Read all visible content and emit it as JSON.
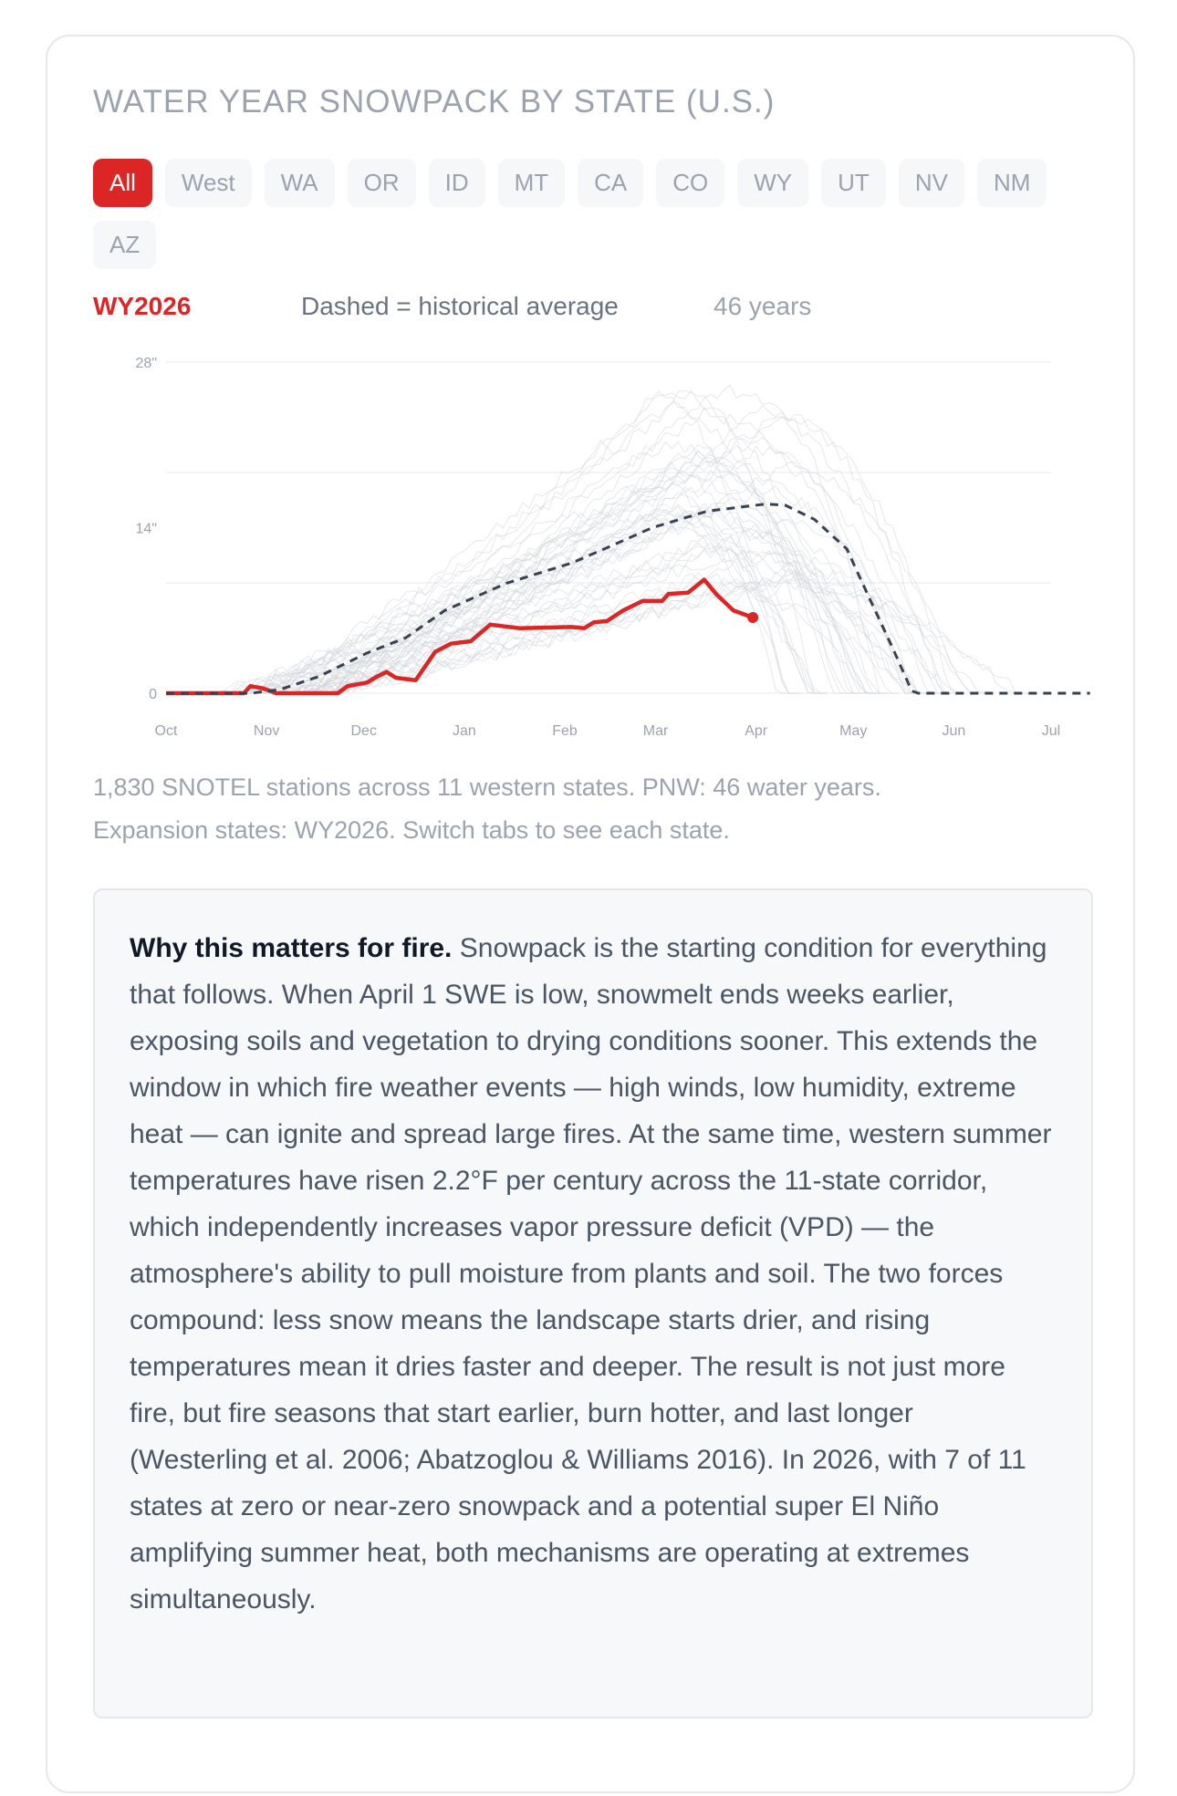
{
  "title": "WATER YEAR SNOWPACK BY STATE (U.S.)",
  "tabs": [
    {
      "label": "All",
      "active": true
    },
    {
      "label": "West"
    },
    {
      "label": "WA"
    },
    {
      "label": "OR"
    },
    {
      "label": "ID"
    },
    {
      "label": "MT"
    },
    {
      "label": "CA"
    },
    {
      "label": "CO"
    },
    {
      "label": "WY"
    },
    {
      "label": "UT"
    },
    {
      "label": "NV"
    },
    {
      "label": "NM"
    },
    {
      "label": "AZ"
    }
  ],
  "legend": {
    "current": "WY2026",
    "dashed": "Dashed = historical average",
    "years": "46 years"
  },
  "colors": {
    "current": "#dc2626",
    "average": "#374151",
    "historical": "#d1d5db",
    "grid": "#f0f1f3"
  },
  "chart_data": {
    "type": "line",
    "xlabel": "",
    "ylabel": "",
    "x_unit": "days since Oct 1",
    "x_ticks": [
      "Oct",
      "Nov",
      "Dec",
      "Jan",
      "Feb",
      "Mar",
      "Apr",
      "May",
      "Jun",
      "Jul"
    ],
    "y_ticks": [
      "0",
      "14\"",
      "28\""
    ],
    "y_tick_values": [
      0,
      14,
      28
    ],
    "ylim": [
      0,
      28
    ],
    "grid": true,
    "series": [
      {
        "name": "WY2026",
        "style": "solid",
        "color": "#dc2626",
        "x": [
          0,
          24,
          26,
          30,
          34,
          53,
          56,
          62,
          65,
          68,
          71,
          77,
          83,
          88,
          94,
          100,
          109,
          125,
          129,
          132,
          136,
          141,
          147,
          153,
          155,
          161,
          166,
          170,
          175,
          181
        ],
        "y": [
          0,
          0,
          0.6,
          0.4,
          0,
          0,
          0.6,
          0.9,
          1.4,
          1.8,
          1.3,
          1.1,
          3.5,
          4.2,
          4.4,
          5.8,
          5.5,
          5.6,
          5.5,
          6.0,
          6.1,
          7.0,
          7.8,
          7.8,
          8.4,
          8.5,
          9.6,
          8.3,
          7.0,
          6.4
        ]
      },
      {
        "name": "historical average",
        "style": "dashed",
        "color": "#374151",
        "x": [
          0,
          26,
          35,
          47,
          62,
          74,
          86,
          105,
          125,
          136,
          150,
          167,
          185,
          191,
          200,
          210,
          216,
          224,
          230,
          232,
          285
        ],
        "y": [
          0,
          0,
          0.3,
          1.4,
          3.4,
          4.7,
          7.0,
          9.3,
          11.0,
          12.3,
          14.0,
          15.4,
          16.0,
          15.9,
          14.7,
          12.2,
          8.6,
          3.9,
          0.2,
          0,
          0
        ]
      }
    ],
    "historical_year_count": 46
  },
  "caption": {
    "line1": "1,830 SNOTEL stations across 11 western states. PNW: 46 water years.",
    "line2": "Expansion states: WY2026. Switch tabs to see each state."
  },
  "explainer": {
    "heading": "Why this matters for fire.",
    "body": "Snowpack is the starting condition for everything that follows. When April 1 SWE is low, snowmelt ends weeks earlier, exposing soils and vegetation to drying conditions sooner. This extends the window in which fire weather events — high winds, low humidity, extreme heat — can ignite and spread large fires. At the same time, western summer temperatures have risen 2.2°F per century across the 11-state corridor, which independently increases vapor pressure deficit (VPD) — the atmosphere's ability to pull moisture from plants and soil. The two forces compound: less snow means the landscape starts drier, and rising temperatures mean it dries faster and deeper. The result is not just more fire, but fire seasons that start earlier, burn hotter, and last longer (Westerling et al. 2006; Abatzoglou & Williams 2016). In 2026, with 7 of 11 states at zero or near-zero snowpack and a potential super El Niño amplifying summer heat, both mechanisms are operating at extremes simultaneously."
  }
}
